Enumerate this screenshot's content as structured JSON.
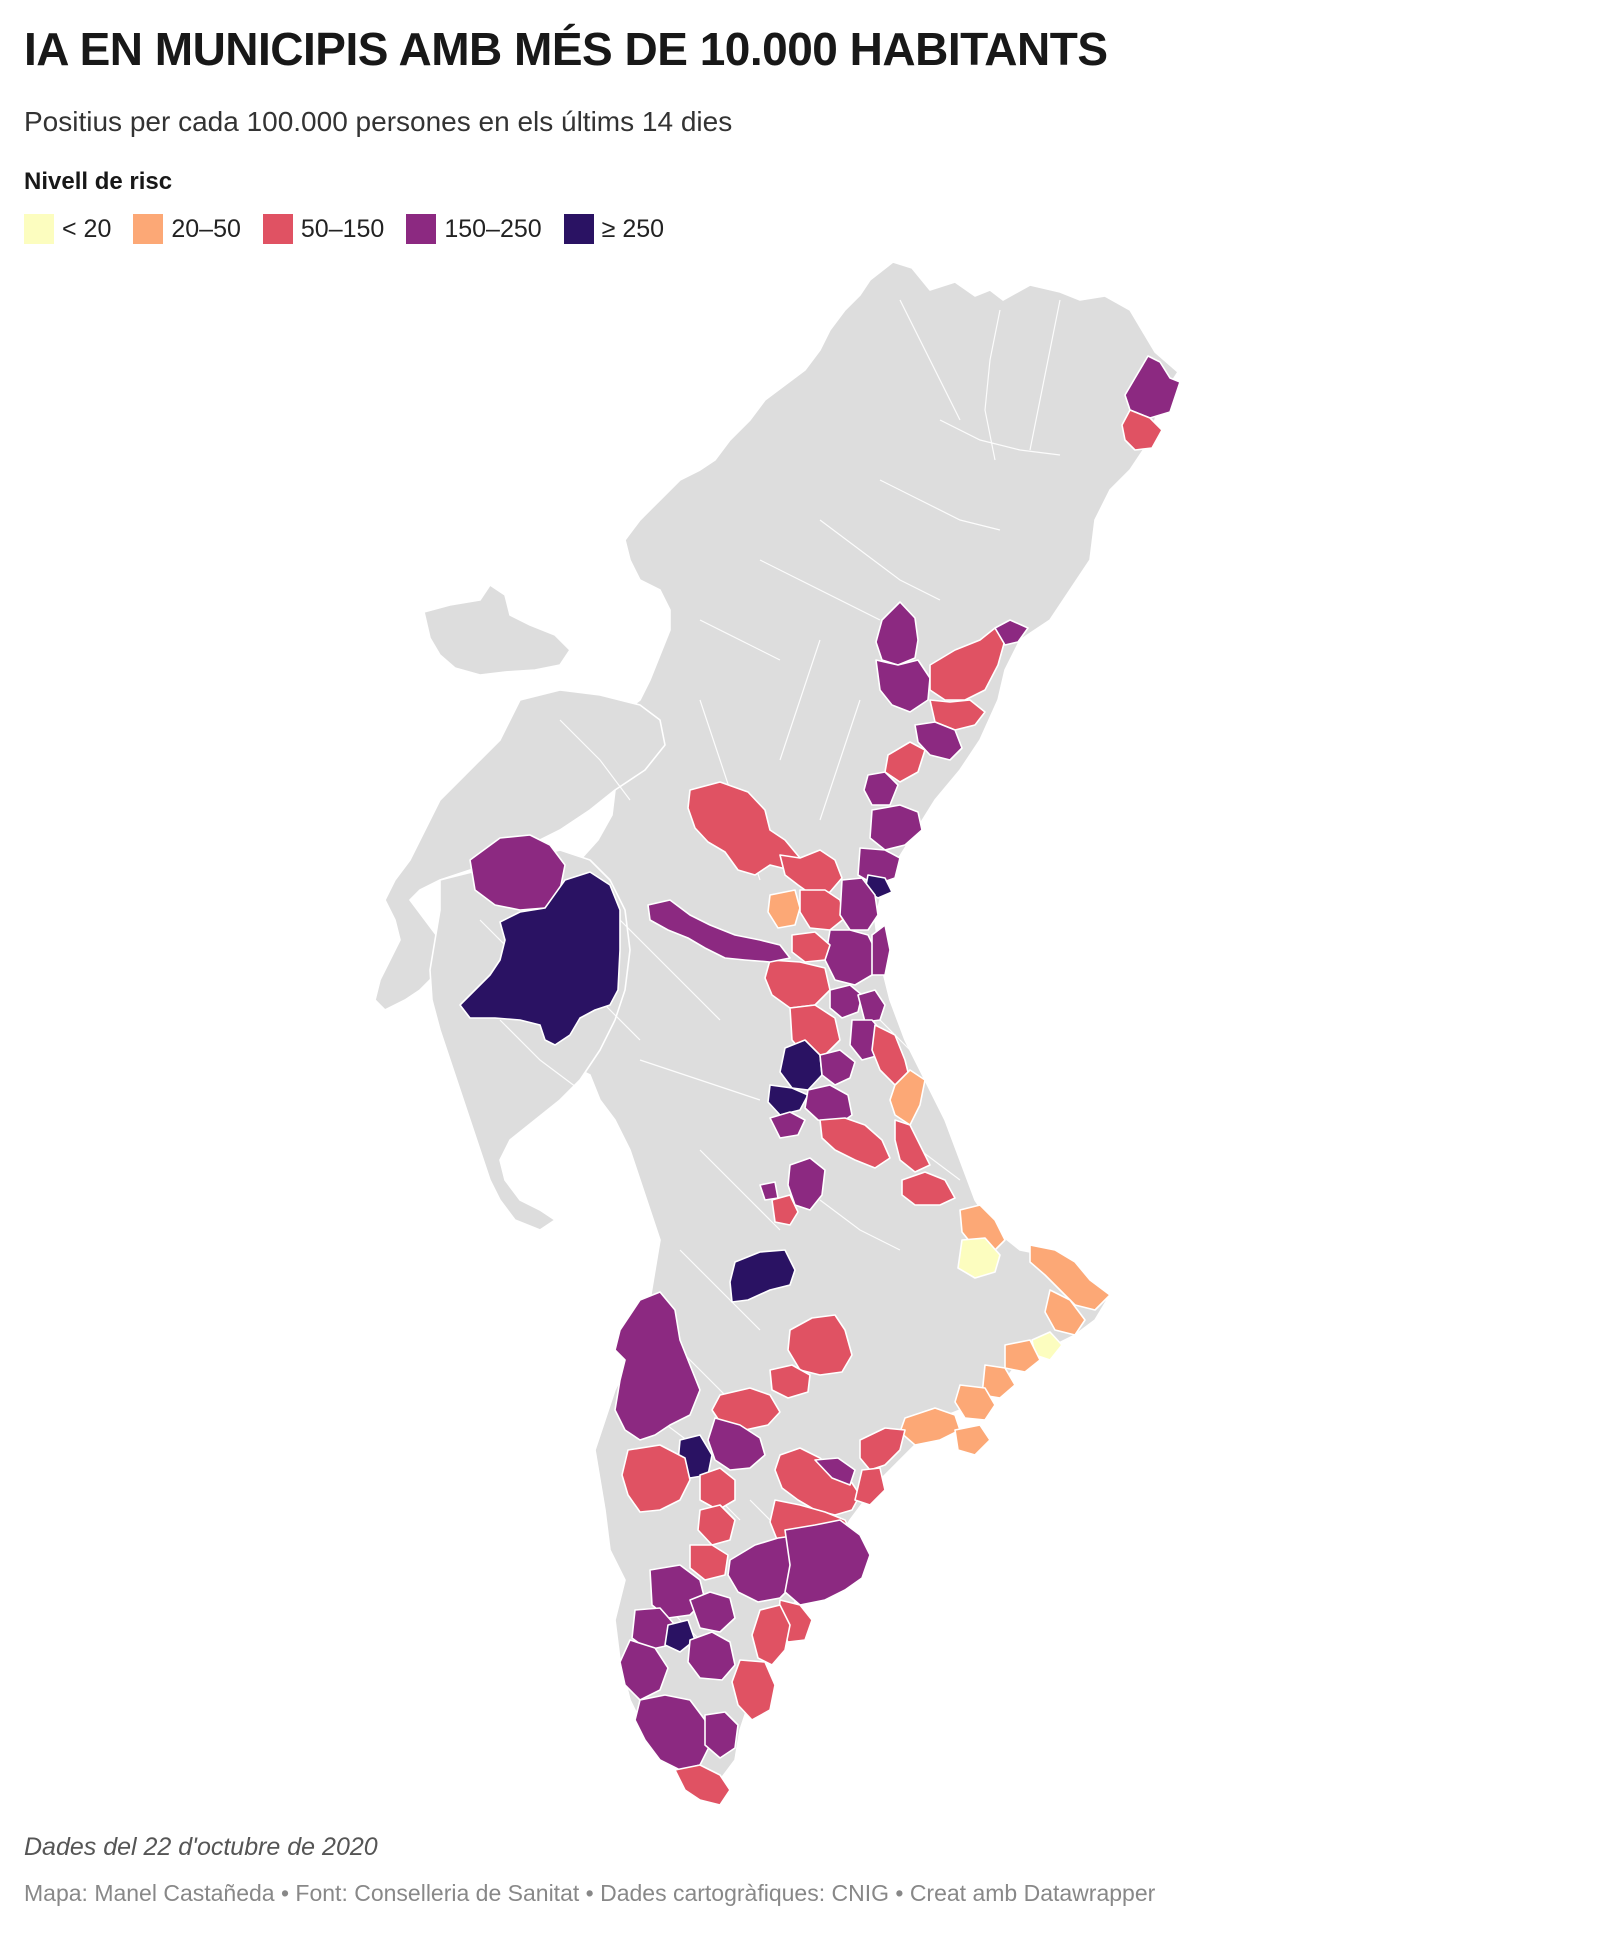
{
  "header": {
    "title": "IA EN MUNICIPIS AMB MÉS DE 10.000 HABITANTS",
    "subtitle": "Positius per cada 100.000 persones en els últims 14 dies"
  },
  "legend": {
    "title": "Nivell de risc",
    "items": [
      {
        "label": "< 20",
        "color": "#fcfdbf"
      },
      {
        "label": "20–50",
        "color": "#fca876"
      },
      {
        "label": "50–150",
        "color": "#e05263"
      },
      {
        "label": "150–250",
        "color": "#8c2981"
      },
      {
        "label": "≥ 250",
        "color": "#2a1263"
      }
    ]
  },
  "map": {
    "base_color": "#dddddd",
    "region": "Comunitat Valenciana"
  },
  "footer": {
    "note": "Dades del 22 d'octubre de 2020",
    "credits": "Mapa: Manel Castañeda • Font: Conselleria de Sanitat • Dades cartogràfiques: CNIG • Creat amb Datawrapper"
  }
}
